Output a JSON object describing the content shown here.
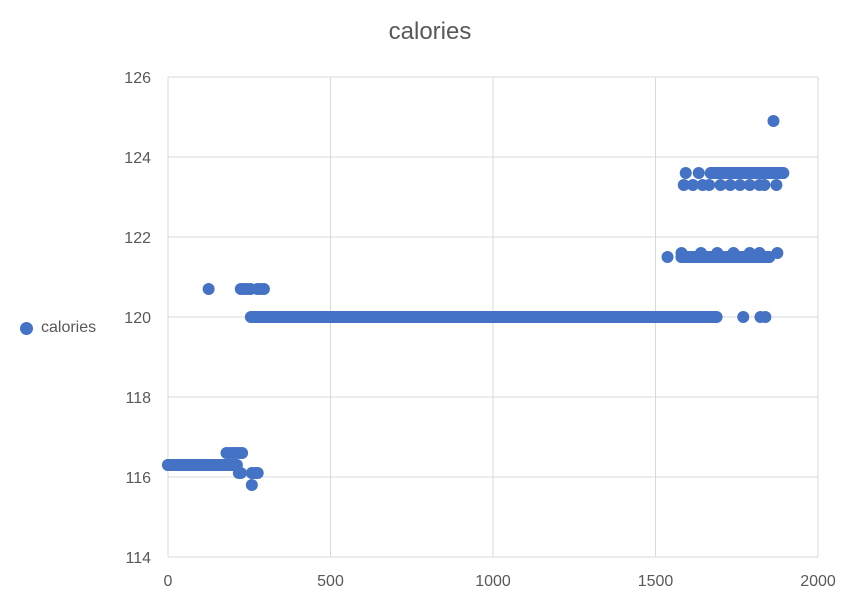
{
  "chart_data": {
    "type": "scatter",
    "title": "calories",
    "xlabel": "",
    "ylabel": "",
    "xlim": [
      0,
      2000
    ],
    "ylim": [
      114,
      126
    ],
    "x_ticks": [
      "0",
      "500",
      "1000",
      "1500",
      "2000"
    ],
    "y_ticks": [
      "114",
      "116",
      "118",
      "120",
      "122",
      "124",
      "126"
    ],
    "grid": true,
    "legend_position": "left",
    "marker_color": "#4472c4",
    "series": [
      {
        "name": "calories",
        "points": [
          [
            0,
            116.3
          ],
          [
            10,
            116.3
          ],
          [
            20,
            116.3
          ],
          [
            30,
            116.3
          ],
          [
            40,
            116.3
          ],
          [
            50,
            116.3
          ],
          [
            60,
            116.3
          ],
          [
            70,
            116.3
          ],
          [
            80,
            116.3
          ],
          [
            90,
            116.3
          ],
          [
            100,
            116.3
          ],
          [
            110,
            116.3
          ],
          [
            120,
            116.3
          ],
          [
            130,
            116.3
          ],
          [
            140,
            116.3
          ],
          [
            150,
            116.3
          ],
          [
            160,
            116.3
          ],
          [
            170,
            116.3
          ],
          [
            180,
            116.3
          ],
          [
            190,
            116.3
          ],
          [
            200,
            116.3
          ],
          [
            210,
            116.3
          ],
          [
            180,
            116.6
          ],
          [
            190,
            116.6
          ],
          [
            200,
            116.6
          ],
          [
            210,
            116.6
          ],
          [
            220,
            116.6
          ],
          [
            228,
            116.6
          ],
          [
            218,
            116.1
          ],
          [
            224,
            116.1
          ],
          [
            258,
            116.1
          ],
          [
            268,
            116.1
          ],
          [
            276,
            116.1
          ],
          [
            258,
            115.8
          ],
          [
            125,
            120.7
          ],
          [
            224,
            120.7
          ],
          [
            234,
            120.7
          ],
          [
            244,
            120.7
          ],
          [
            254,
            120.7
          ],
          [
            275,
            120.7
          ],
          [
            285,
            120.7
          ],
          [
            295,
            120.7
          ],
          [
            255,
            120
          ],
          [
            265,
            120
          ],
          [
            275,
            120
          ],
          [
            310,
            120
          ],
          [
            360,
            120
          ],
          [
            410,
            120
          ],
          [
            460,
            120
          ],
          [
            510,
            120
          ],
          [
            560,
            120
          ],
          [
            610,
            120
          ],
          [
            660,
            120
          ],
          [
            710,
            120
          ],
          [
            760,
            120
          ],
          [
            810,
            120
          ],
          [
            860,
            120
          ],
          [
            910,
            120
          ],
          [
            960,
            120
          ],
          [
            1010,
            120
          ],
          [
            1060,
            120
          ],
          [
            1110,
            120
          ],
          [
            1160,
            120
          ],
          [
            1210,
            120
          ],
          [
            1260,
            120
          ],
          [
            1310,
            120
          ],
          [
            1360,
            120
          ],
          [
            1410,
            120
          ],
          [
            1460,
            120
          ],
          [
            1510,
            120
          ],
          [
            1560,
            120
          ],
          [
            1610,
            120
          ],
          [
            1660,
            120
          ],
          [
            1685,
            120
          ],
          [
            1770,
            120
          ],
          [
            1823,
            120
          ],
          [
            1838,
            120
          ],
          [
            1537,
            121.5
          ],
          [
            1580,
            121.5
          ],
          [
            1620,
            121.5
          ],
          [
            1650,
            121.5
          ],
          [
            1680,
            121.5
          ],
          [
            1720,
            121.5
          ],
          [
            1760,
            121.5
          ],
          [
            1800,
            121.5
          ],
          [
            1830,
            121.5
          ],
          [
            1850,
            121.5
          ],
          [
            1580,
            121.6
          ],
          [
            1640,
            121.6
          ],
          [
            1690,
            121.6
          ],
          [
            1740,
            121.6
          ],
          [
            1790,
            121.6
          ],
          [
            1820,
            121.6
          ],
          [
            1875,
            121.6
          ],
          [
            1587,
            123.3
          ],
          [
            1615,
            123.3
          ],
          [
            1645,
            123.3
          ],
          [
            1665,
            123.3
          ],
          [
            1700,
            123.3
          ],
          [
            1730,
            123.3
          ],
          [
            1760,
            123.3
          ],
          [
            1790,
            123.3
          ],
          [
            1820,
            123.3
          ],
          [
            1835,
            123.3
          ],
          [
            1872,
            123.3
          ],
          [
            1593,
            123.6
          ],
          [
            1633,
            123.6
          ],
          [
            1670,
            123.6
          ],
          [
            1700,
            123.6
          ],
          [
            1730,
            123.6
          ],
          [
            1760,
            123.6
          ],
          [
            1790,
            123.6
          ],
          [
            1820,
            123.6
          ],
          [
            1850,
            123.6
          ],
          [
            1875,
            123.6
          ],
          [
            1893,
            123.6
          ],
          [
            1863,
            124.9
          ]
        ]
      }
    ]
  }
}
